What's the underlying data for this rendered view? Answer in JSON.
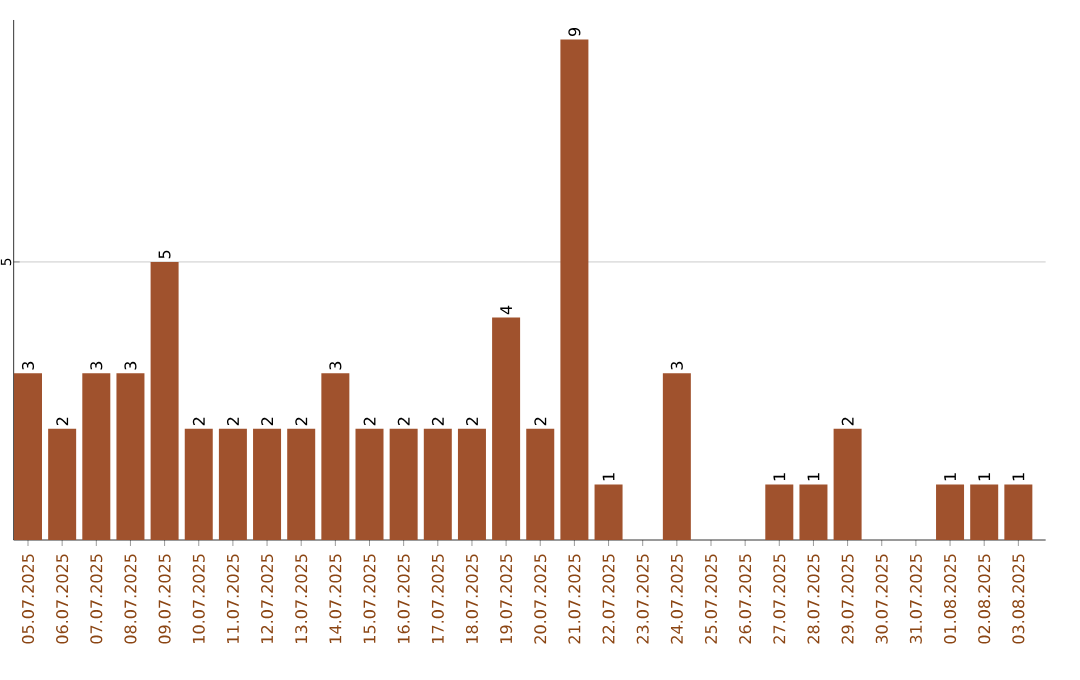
{
  "chart_data": {
    "type": "bar",
    "categories": [
      "05.07.2025",
      "06.07.2025",
      "07.07.2025",
      "08.07.2025",
      "09.07.2025",
      "10.07.2025",
      "11.07.2025",
      "12.07.2025",
      "13.07.2025",
      "14.07.2025",
      "15.07.2025",
      "16.07.2025",
      "17.07.2025",
      "18.07.2025",
      "19.07.2025",
      "20.07.2025",
      "21.07.2025",
      "22.07.2025",
      "23.07.2025",
      "24.07.2025",
      "25.07.2025",
      "26.07.2025",
      "27.07.2025",
      "28.07.2025",
      "29.07.2025",
      "30.07.2025",
      "31.07.2025",
      "01.08.2025",
      "02.08.2025",
      "03.08.2025"
    ],
    "values": [
      3,
      2,
      3,
      3,
      5,
      2,
      2,
      2,
      2,
      3,
      2,
      2,
      2,
      2,
      4,
      2,
      9,
      1,
      0,
      3,
      0,
      0,
      1,
      1,
      2,
      0,
      0,
      1,
      1,
      1
    ],
    "value_labels": [
      "3",
      "2",
      "3",
      "3",
      "5",
      "2",
      "2",
      "2",
      "2",
      "3",
      "2",
      "2",
      "2",
      "2",
      "4",
      "2",
      "9",
      "1",
      null,
      "3",
      null,
      null,
      "1",
      "1",
      "2",
      null,
      null,
      "1",
      "1",
      "1"
    ],
    "color": "#a0522d",
    "ylim": [
      0,
      9.35
    ],
    "yticks": [
      5
    ],
    "grid": "y"
  }
}
